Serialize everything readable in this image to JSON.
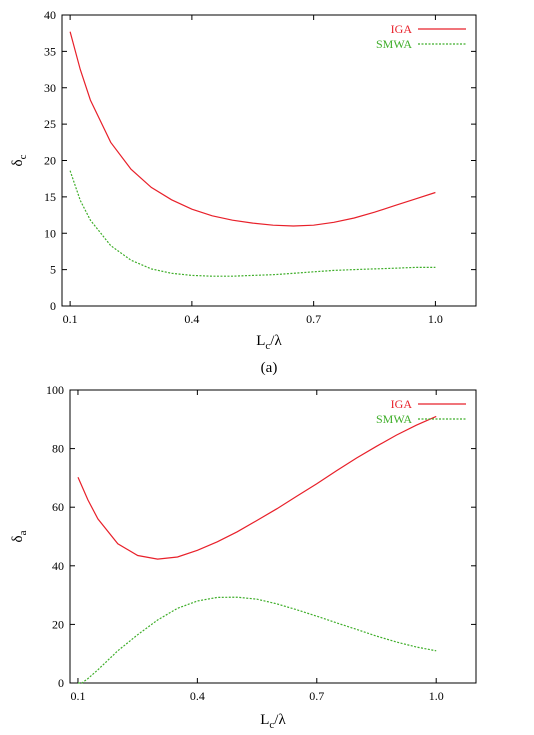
{
  "chart_data": [
    {
      "type": "line",
      "panel_label": "(a)",
      "xlabel": "L",
      "xlabel_sub": "c",
      "xlabel_suffix": "/λ",
      "ylabel": "δ",
      "ylabel_sub": "c",
      "xlim": [
        0.08,
        1.1
      ],
      "ylim": [
        0,
        40
      ],
      "xticks": [
        0.1,
        0.4,
        0.7,
        1.0
      ],
      "xtick_labels": [
        "0.1",
        "0.4",
        "0.7",
        "1.0"
      ],
      "yticks": [
        0,
        5,
        10,
        15,
        20,
        25,
        30,
        35,
        40
      ],
      "ytick_labels": [
        "0",
        "5",
        "10",
        "15",
        "20",
        "25",
        "30",
        "35",
        "40"
      ],
      "legend_position": "top-right",
      "series": [
        {
          "name": "IGA",
          "color": "#e8202a",
          "dash": "solid",
          "x": [
            0.1,
            0.125,
            0.15,
            0.2,
            0.25,
            0.3,
            0.35,
            0.4,
            0.45,
            0.5,
            0.55,
            0.6,
            0.65,
            0.7,
            0.75,
            0.8,
            0.85,
            0.9,
            0.95,
            1.0
          ],
          "y": [
            37.7,
            32.5,
            28.3,
            22.5,
            18.8,
            16.3,
            14.6,
            13.3,
            12.4,
            11.8,
            11.4,
            11.1,
            11.0,
            11.1,
            11.5,
            12.1,
            12.9,
            13.8,
            14.7,
            15.6
          ]
        },
        {
          "name": "SMWA",
          "color": "#3fae2a",
          "dash": "dashed",
          "x": [
            0.1,
            0.125,
            0.15,
            0.2,
            0.25,
            0.3,
            0.35,
            0.4,
            0.45,
            0.5,
            0.55,
            0.6,
            0.65,
            0.7,
            0.75,
            0.8,
            0.85,
            0.9,
            0.95,
            1.0
          ],
          "y": [
            18.6,
            14.5,
            11.8,
            8.3,
            6.3,
            5.1,
            4.5,
            4.2,
            4.1,
            4.1,
            4.2,
            4.3,
            4.5,
            4.7,
            4.9,
            5.0,
            5.1,
            5.2,
            5.3,
            5.3
          ]
        }
      ]
    },
    {
      "type": "line",
      "panel_label": "",
      "xlabel": "L",
      "xlabel_sub": "c",
      "xlabel_suffix": "/λ",
      "ylabel": "δ",
      "ylabel_sub": "a",
      "xlim": [
        0.08,
        1.1
      ],
      "ylim": [
        0,
        100
      ],
      "xticks": [
        0.1,
        0.4,
        0.7,
        1.0
      ],
      "xtick_labels": [
        "0.1",
        "0.4",
        "0.7",
        "1.0"
      ],
      "yticks": [
        0,
        20,
        40,
        60,
        80,
        100
      ],
      "ytick_labels": [
        "0",
        "20",
        "40",
        "60",
        "80",
        "100"
      ],
      "legend_position": "top-right",
      "series": [
        {
          "name": "IGA",
          "color": "#e8202a",
          "dash": "solid",
          "x": [
            0.1,
            0.125,
            0.15,
            0.2,
            0.25,
            0.3,
            0.35,
            0.4,
            0.45,
            0.5,
            0.55,
            0.6,
            0.65,
            0.7,
            0.75,
            0.8,
            0.85,
            0.9,
            0.95,
            1.0
          ],
          "y": [
            70.2,
            62.5,
            56.0,
            47.5,
            43.5,
            42.3,
            43.0,
            45.3,
            48.2,
            51.6,
            55.5,
            59.5,
            63.8,
            68.0,
            72.5,
            76.8,
            80.8,
            84.6,
            88.0,
            91.0
          ]
        },
        {
          "name": "SMWA",
          "color": "#3fae2a",
          "dash": "dashed",
          "x": [
            0.1,
            0.11,
            0.125,
            0.15,
            0.2,
            0.25,
            0.3,
            0.35,
            0.4,
            0.45,
            0.5,
            0.55,
            0.6,
            0.65,
            0.7,
            0.75,
            0.8,
            0.85,
            0.9,
            0.95,
            1.0
          ],
          "y": [
            0.0,
            0.0,
            1.5,
            4.5,
            11.0,
            16.5,
            21.5,
            25.5,
            28.0,
            29.2,
            29.3,
            28.6,
            27.0,
            25.0,
            22.8,
            20.5,
            18.3,
            16.0,
            14.0,
            12.3,
            11.0
          ]
        }
      ]
    }
  ]
}
